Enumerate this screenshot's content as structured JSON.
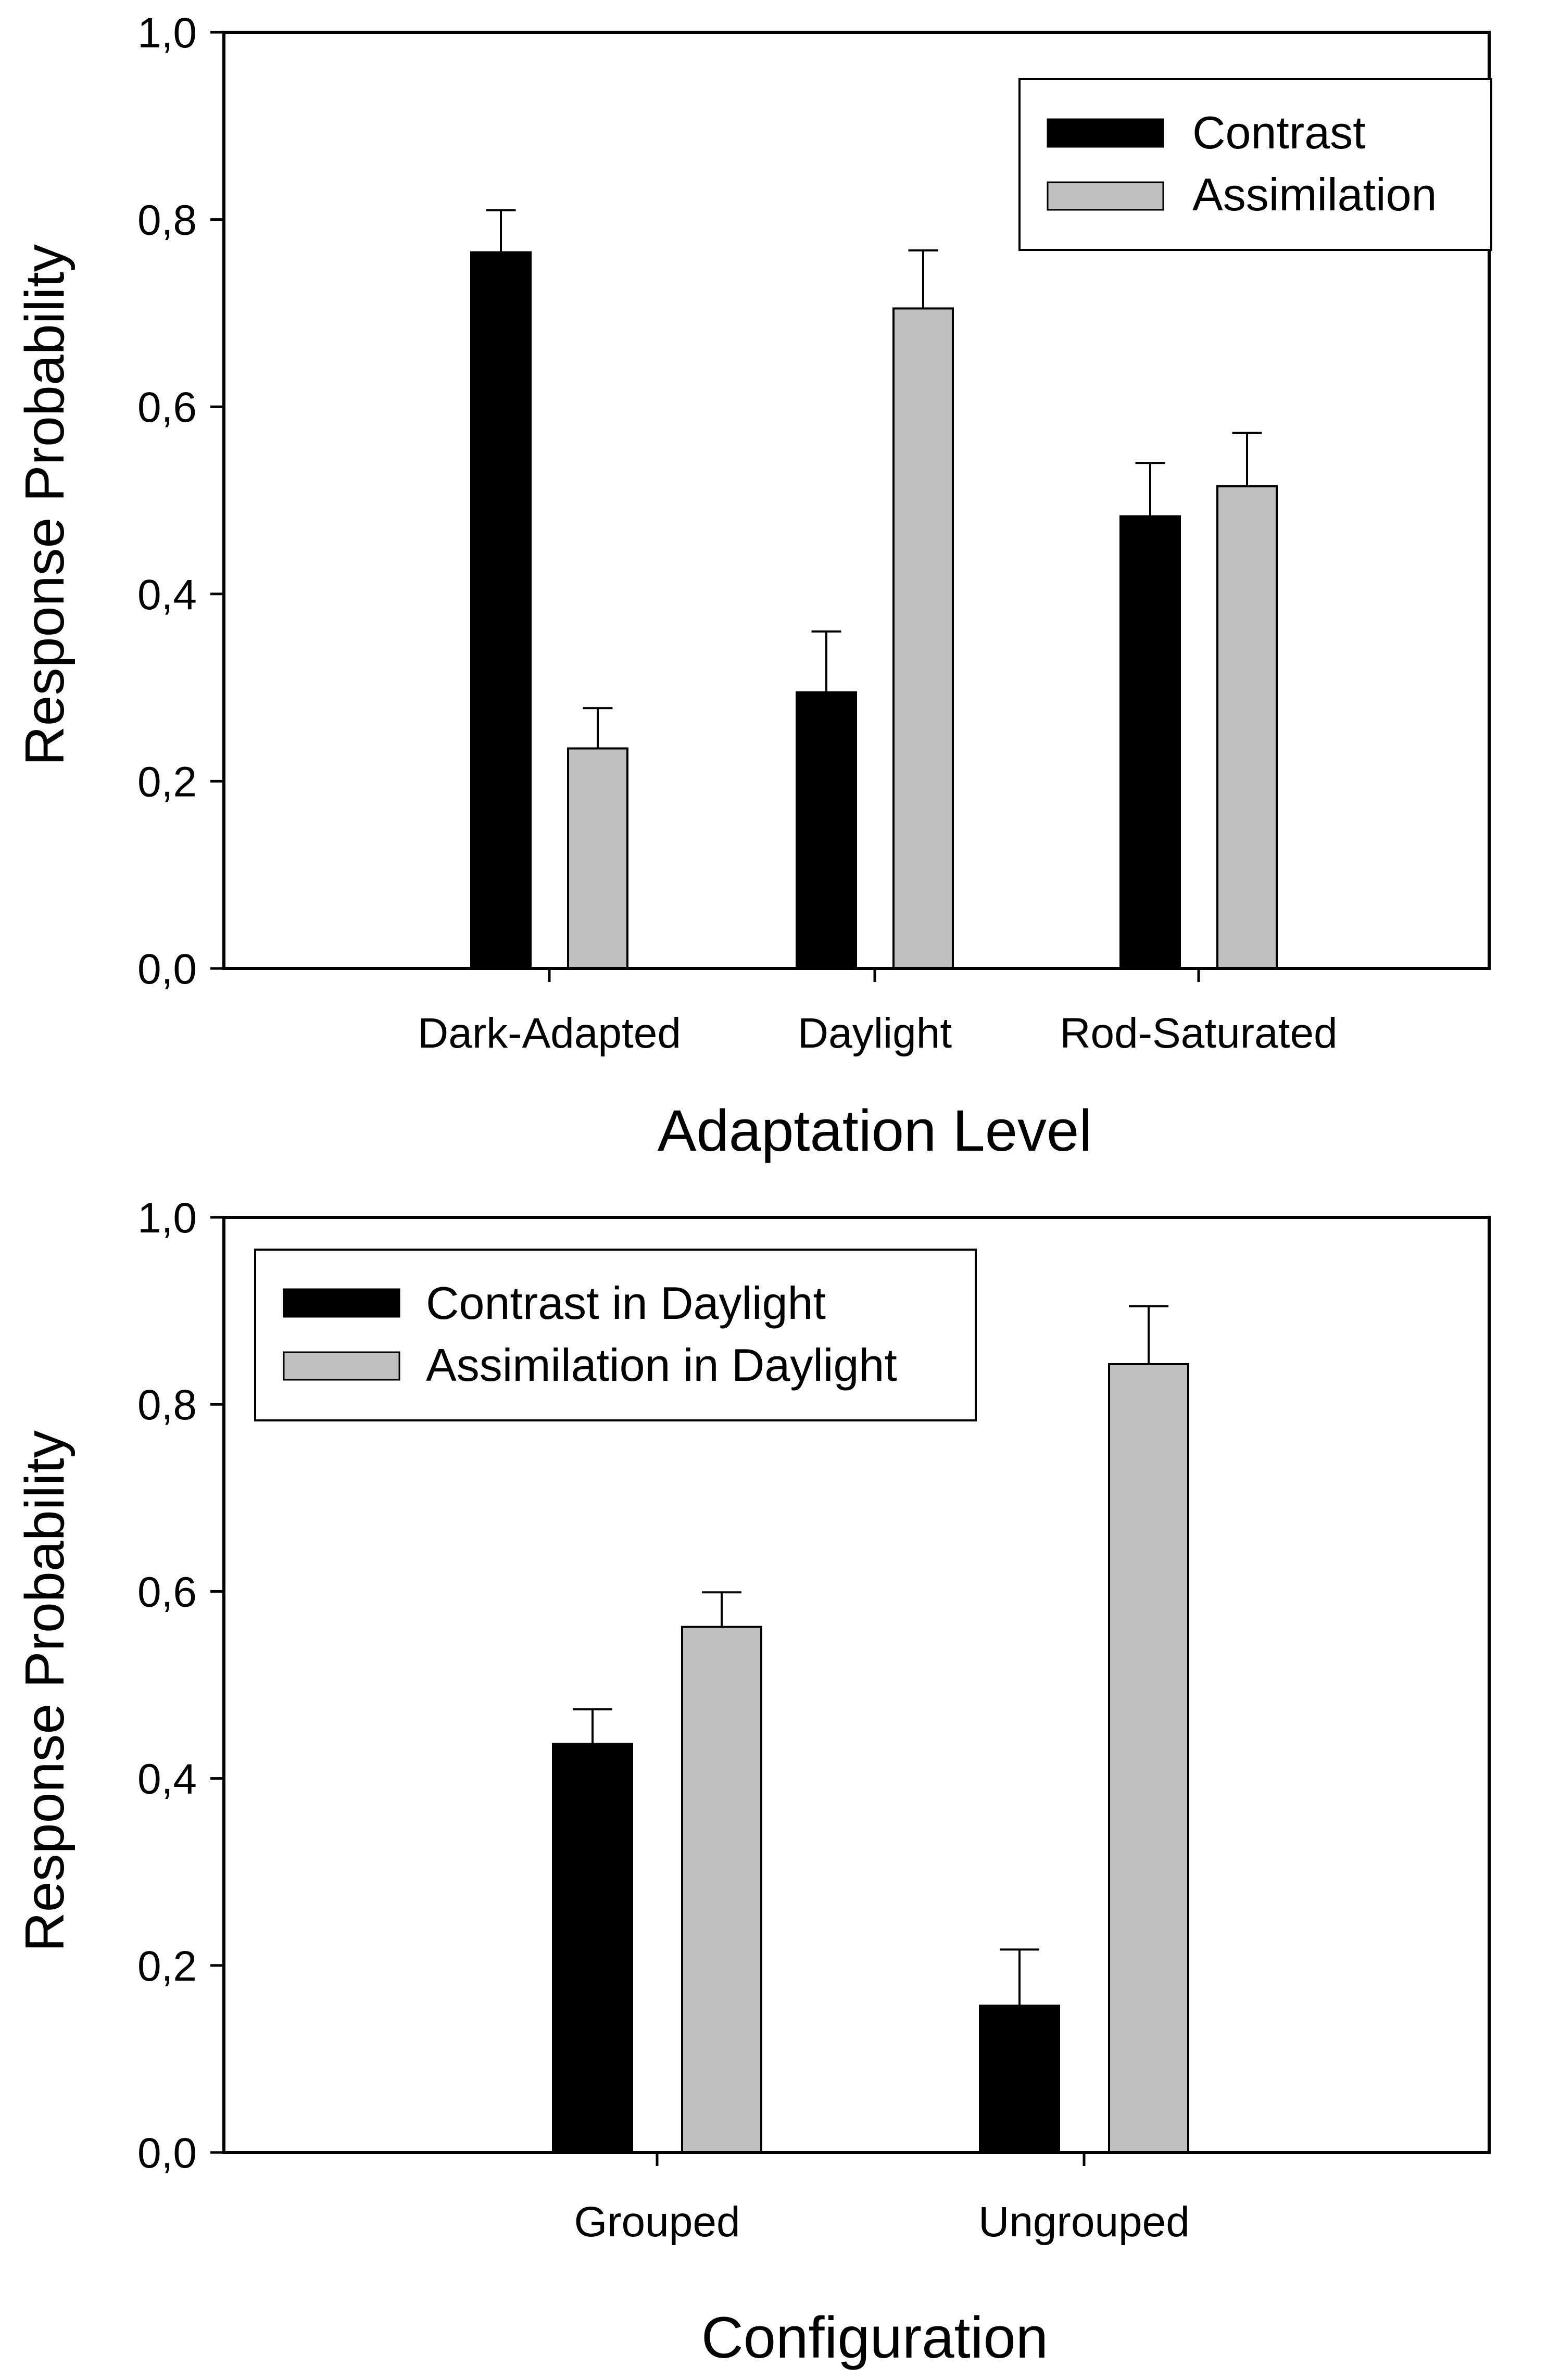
{
  "colors": {
    "contrast": "#000000",
    "assimilation": "#c0c0c0",
    "axis": "#000000",
    "background": "#ffffff"
  },
  "chart_data": [
    {
      "type": "bar",
      "title": "",
      "xlabel": "Adaptation Level",
      "ylabel": "Response Probability",
      "ylim": [
        0,
        1
      ],
      "yticks": [
        "0,0",
        "0,2",
        "0,4",
        "0,6",
        "0,8",
        "1,0"
      ],
      "categories": [
        "Dark-Adapted",
        "Daylight",
        "Rod-Saturated"
      ],
      "legend_position": "top-right",
      "series": [
        {
          "name": "Contrast",
          "color": "#000000",
          "values": [
            0.765,
            0.295,
            0.483
          ],
          "errors": [
            0.045,
            0.065,
            0.057
          ]
        },
        {
          "name": "Assimilation",
          "color": "#c0c0c0",
          "values": [
            0.235,
            0.705,
            0.515
          ],
          "errors": [
            0.043,
            0.062,
            0.057
          ]
        }
      ]
    },
    {
      "type": "bar",
      "title": "",
      "xlabel": "Configuration",
      "ylabel": "Response Probability",
      "ylim": [
        0,
        1
      ],
      "yticks": [
        "0,0",
        "0,2",
        "0,4",
        "0,6",
        "0,8",
        "1,0"
      ],
      "categories": [
        "Grouped",
        "Ungrouped"
      ],
      "legend_position": "top-left",
      "series": [
        {
          "name": "Contrast in Daylight",
          "color": "#000000",
          "values": [
            0.437,
            0.157
          ],
          "errors": [
            0.037,
            0.06
          ]
        },
        {
          "name": "Assimilation in Daylight",
          "color": "#c0c0c0",
          "values": [
            0.562,
            0.843
          ],
          "errors": [
            0.037,
            0.062
          ]
        }
      ]
    }
  ]
}
